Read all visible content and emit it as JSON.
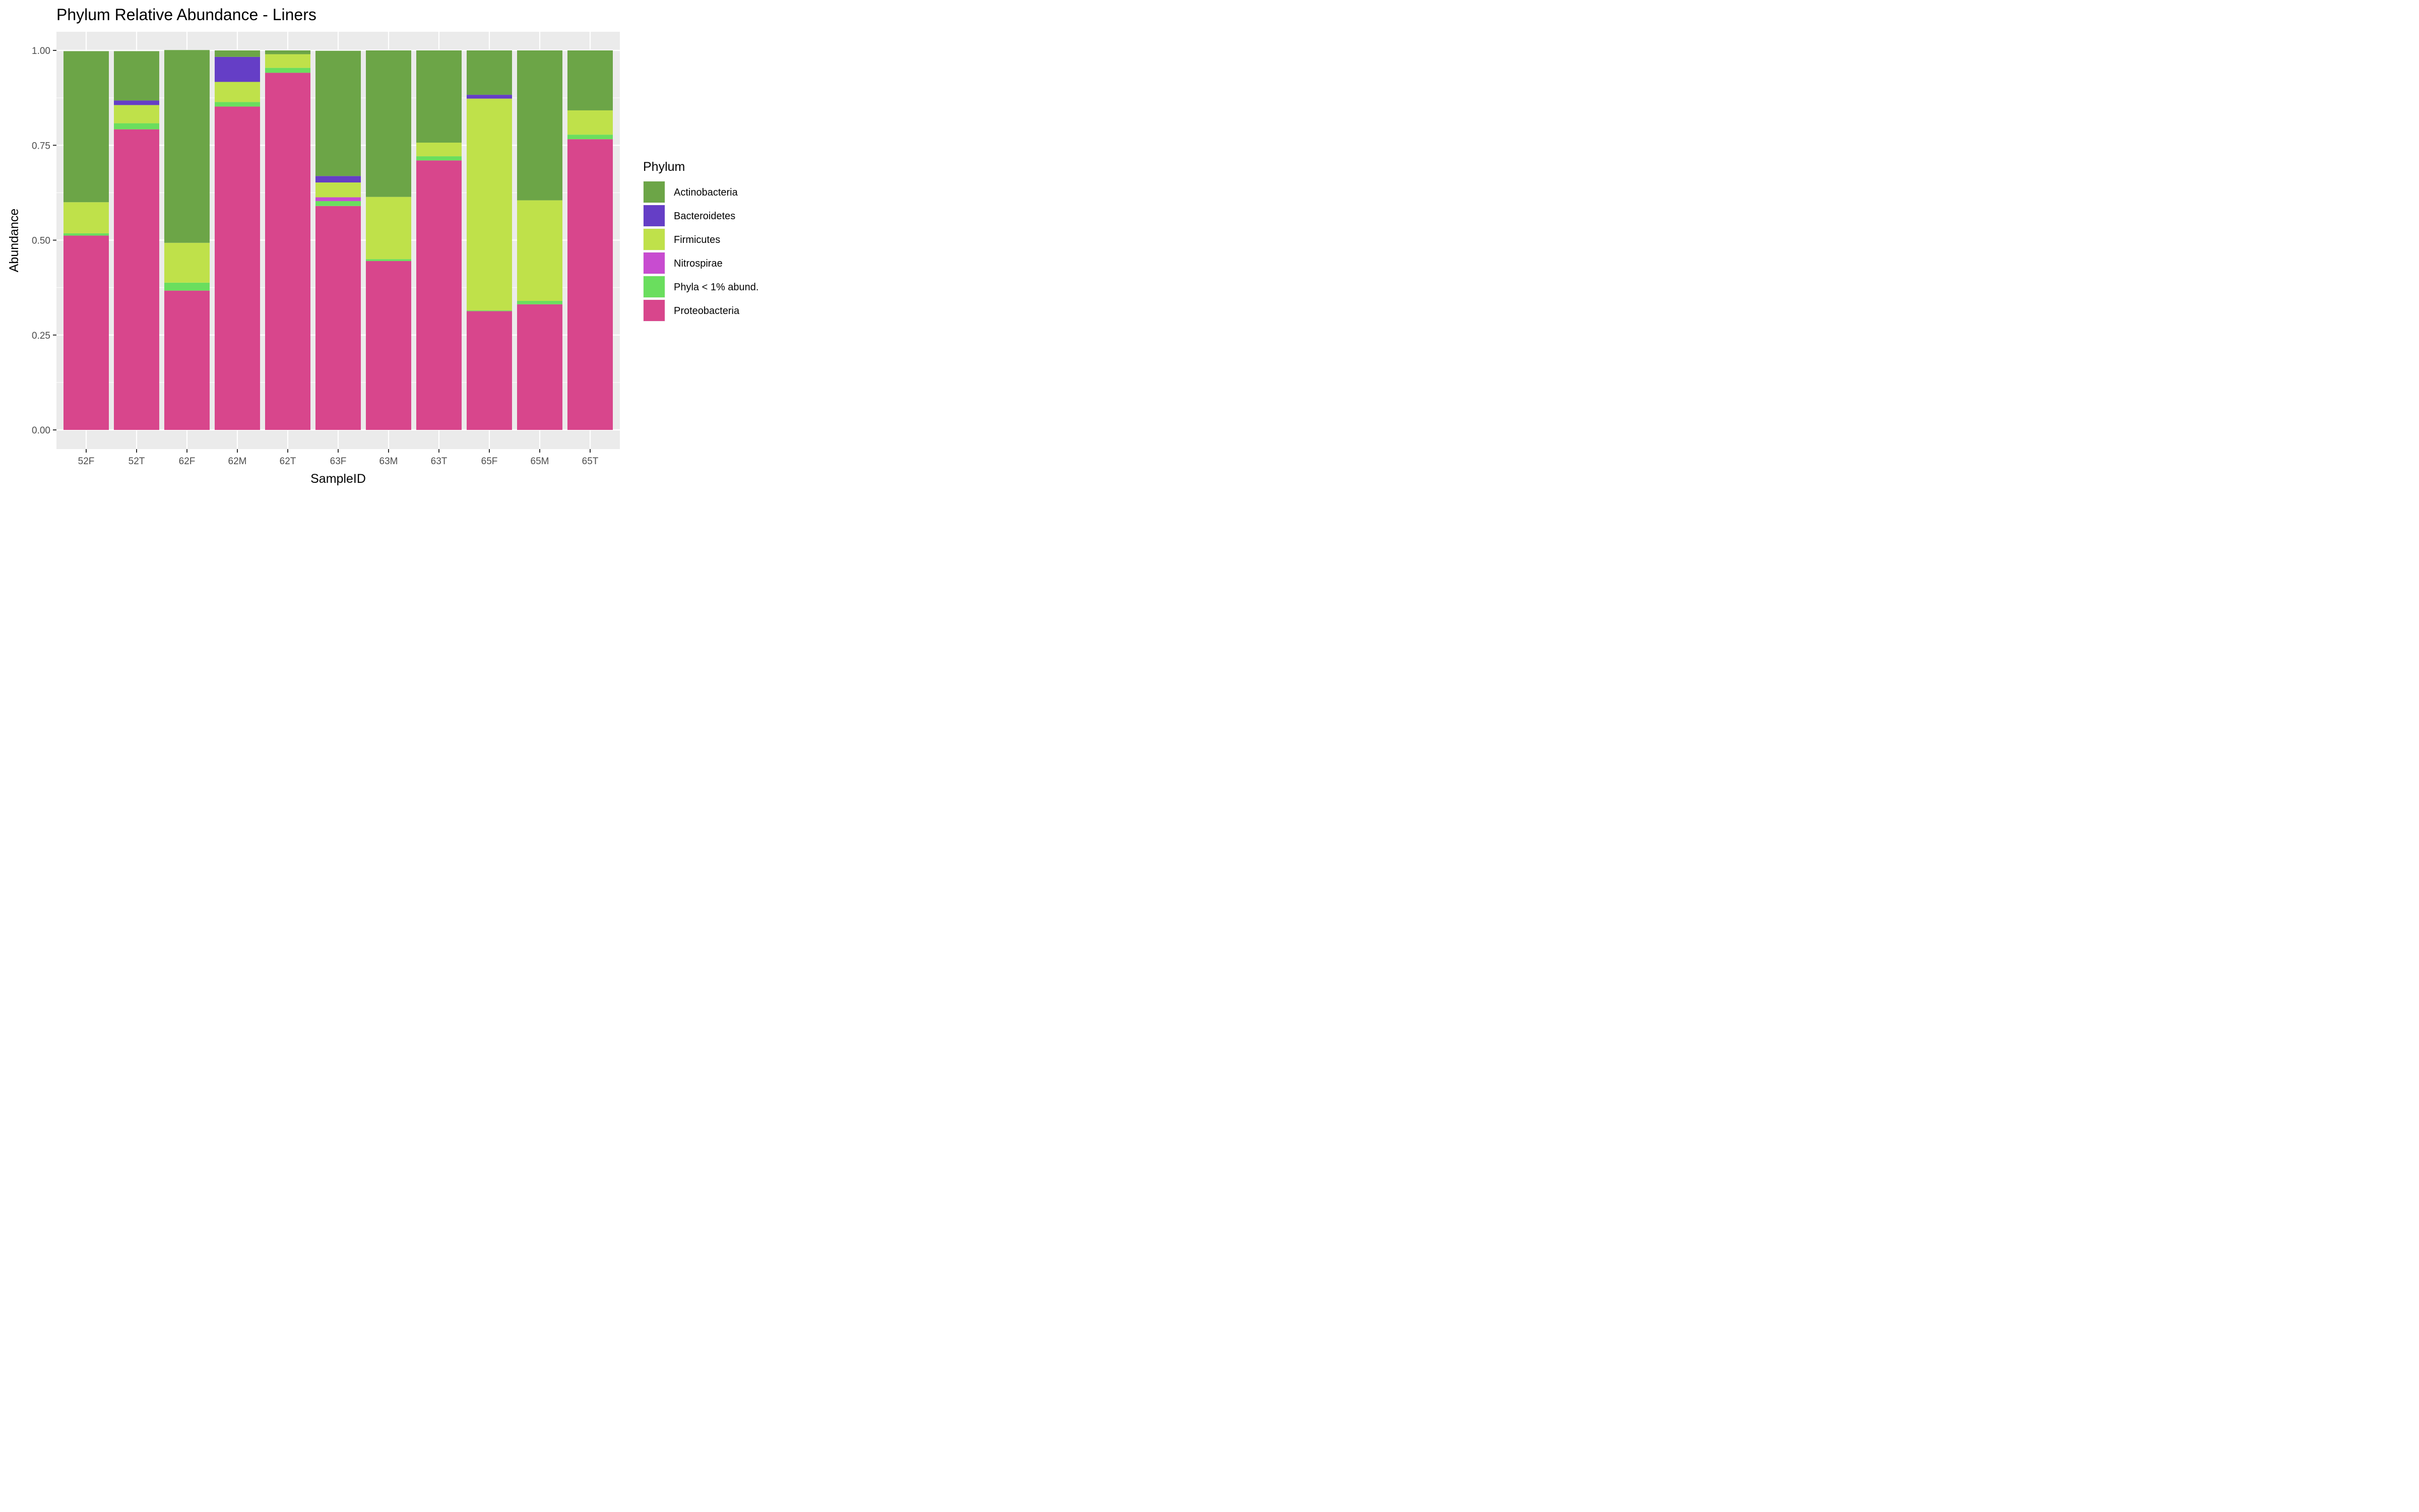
{
  "chart_data": {
    "type": "bar",
    "stacked": true,
    "title": "Phylum Relative Abundance - Liners",
    "xlabel": "SampleID",
    "ylabel": "Abundance",
    "ylim": [
      0,
      1
    ],
    "yticks": [
      "0.00",
      "0.25",
      "0.50",
      "0.75",
      "1.00"
    ],
    "grid": true,
    "legend_title": "Phylum",
    "legend_position": "right",
    "categories": [
      "52F",
      "52T",
      "62F",
      "62M",
      "62T",
      "63F",
      "63M",
      "63T",
      "65F",
      "65M",
      "65T"
    ],
    "series": [
      {
        "name": "Actinobacteria",
        "color": "#6ca547",
        "values": [
          0.398,
          0.13,
          0.508,
          0.017,
          0.01,
          0.33,
          0.386,
          0.243,
          0.117,
          0.395,
          0.158
        ]
      },
      {
        "name": "Bacteroidetes",
        "color": "#653ec6",
        "values": [
          0.0,
          0.012,
          0.0,
          0.066,
          0.0,
          0.017,
          0.0,
          0.0,
          0.01,
          0.0,
          0.0
        ]
      },
      {
        "name": "Firmicutes",
        "color": "#bfe14a",
        "values": [
          0.082,
          0.048,
          0.105,
          0.053,
          0.036,
          0.039,
          0.164,
          0.036,
          0.558,
          0.265,
          0.064
        ]
      },
      {
        "name": "Nitrospirae",
        "color": "#c84cd0",
        "values": [
          0.0,
          0.0,
          0.0,
          0.0,
          0.0,
          0.01,
          0.0,
          0.0,
          0.0,
          0.0,
          0.0
        ]
      },
      {
        "name": "Phyla < 1% abund.",
        "color": "#6ade5e",
        "values": [
          0.006,
          0.016,
          0.021,
          0.012,
          0.013,
          0.013,
          0.005,
          0.011,
          0.002,
          0.009,
          0.012
        ]
      },
      {
        "name": "Proteobacteria",
        "color": "#d8468c",
        "values": [
          0.512,
          0.792,
          0.367,
          0.852,
          0.941,
          0.59,
          0.445,
          0.71,
          0.313,
          0.331,
          0.766
        ]
      }
    ]
  }
}
